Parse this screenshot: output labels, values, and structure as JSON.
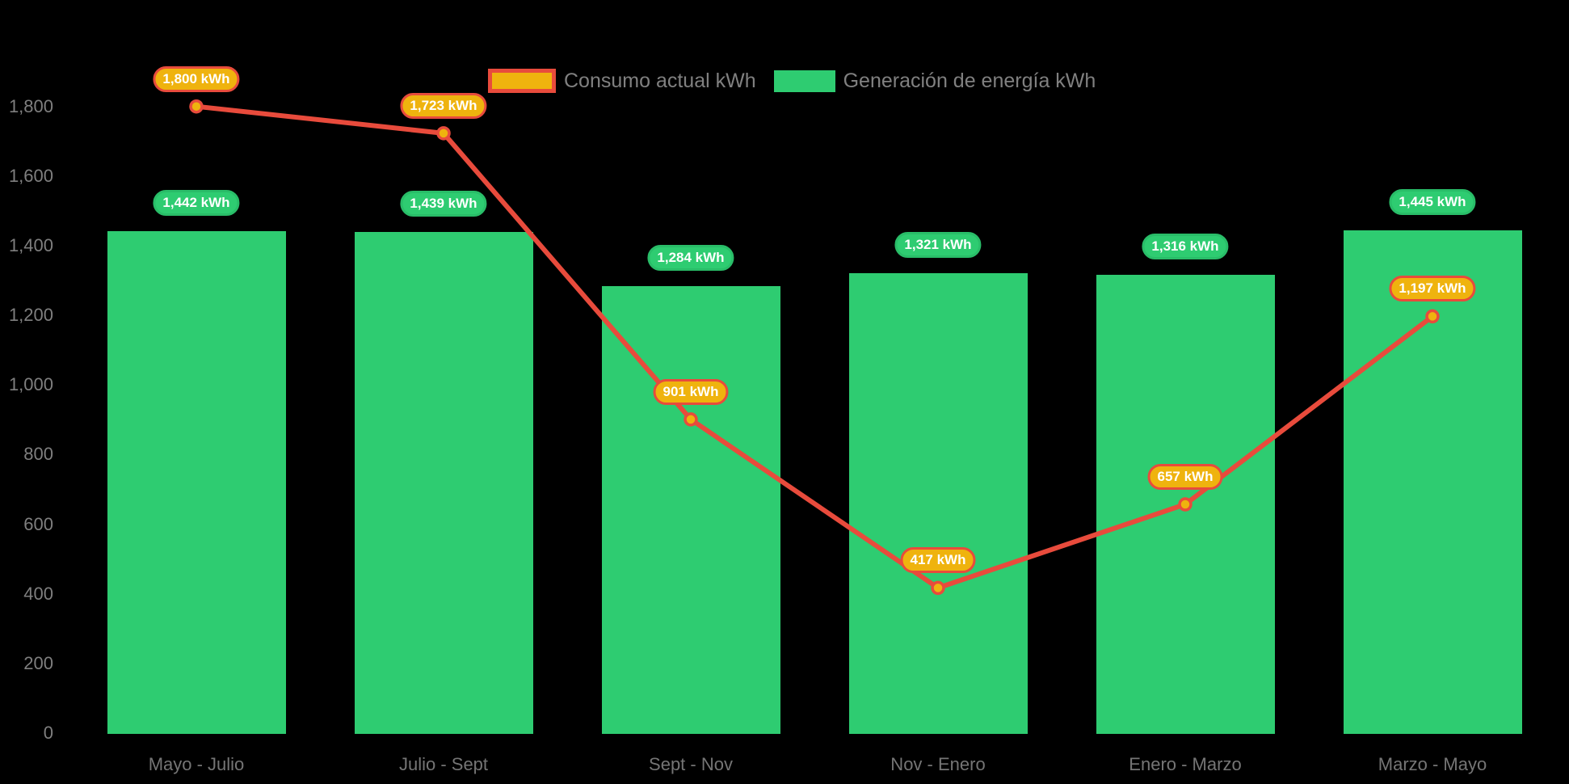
{
  "chart_data": {
    "type": "bar",
    "title": "",
    "categories": [
      "Mayo - Julio",
      "Julio - Sept",
      "Sept - Nov",
      "Nov - Enero",
      "Enero - Marzo",
      "Marzo - Mayo"
    ],
    "series": [
      {
        "name": "Consumo actual kWh",
        "type": "line",
        "values": [
          1800,
          1723,
          901,
          417,
          657,
          1197
        ],
        "labels": [
          "1,800 kWh",
          "1,723 kWh",
          "901 kWh",
          "417 kWh",
          "657 kWh",
          "1,197 kWh"
        ],
        "line_color": "#e84b3c",
        "marker_color": "#efb30e"
      },
      {
        "name": "Generación de energía kWh",
        "type": "bar",
        "values": [
          1442,
          1439,
          1284,
          1321,
          1316,
          1445
        ],
        "labels": [
          "1,442 kWh",
          "1,439 kWh",
          "1,284 kWh",
          "1,321 kWh",
          "1,316 kWh",
          "1,445 kWh"
        ],
        "bar_color": "#2ecc71"
      }
    ],
    "ylim": [
      0,
      1800
    ],
    "ytick_step": 200,
    "ytick_labels": [
      "0",
      "200",
      "400",
      "600",
      "800",
      "1,000",
      "1,200",
      "1,400",
      "1,600",
      "1,800"
    ],
    "xlabel": "",
    "ylabel": "",
    "grid": false,
    "legend_position": "top",
    "background_color": "#000000",
    "axis_label_color": "#7f7f7f"
  }
}
